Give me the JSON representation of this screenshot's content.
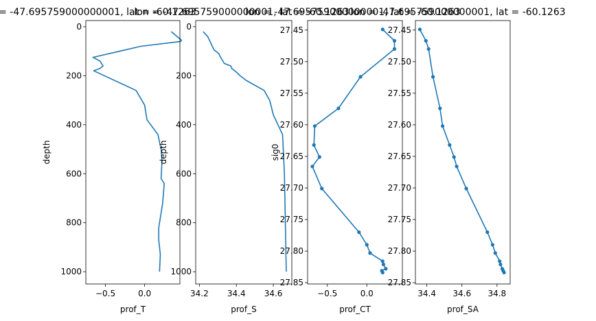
{
  "figure": {
    "line_color": "#1f77b4",
    "background": "#ffffff"
  },
  "chart_data": [
    {
      "type": "line",
      "title": "lon = -47.695759000000001, lat = -60.1263",
      "xlabel": "prof_T",
      "ylabel": "depth",
      "xlim": [
        -0.75,
        0.45
      ],
      "ylim": [
        1050,
        -25
      ],
      "y_inverted": true,
      "markers": false,
      "xticks": [
        -0.5,
        0.0
      ],
      "xtick_labels": [
        "−0.5",
        "0.0"
      ],
      "yticks": [
        0,
        200,
        400,
        600,
        800,
        1000
      ],
      "ytick_labels": [
        "0",
        "200",
        "400",
        "600",
        "800",
        "1000"
      ],
      "x": [
        0.34,
        0.47,
        0.46,
        -0.05,
        -0.32,
        -0.66,
        -0.57,
        -0.53,
        -0.57,
        -0.65,
        -0.11,
        0.0,
        0.03,
        0.17,
        0.21,
        0.22,
        0.22,
        0.21,
        0.25,
        0.23,
        0.18,
        0.18,
        0.2,
        0.19
      ],
      "y": [
        20,
        55,
        60,
        80,
        100,
        125,
        140,
        160,
        170,
        180,
        260,
        320,
        380,
        440,
        500,
        540,
        560,
        620,
        640,
        720,
        820,
        870,
        930,
        1000
      ]
    },
    {
      "type": "line",
      "title": "lon = -47.695759000000001, lat = -60.1263",
      "xlabel": "prof_S",
      "ylabel": "depth",
      "xlim": [
        34.18,
        34.7
      ],
      "ylim": [
        1050,
        -25
      ],
      "y_inverted": true,
      "markers": false,
      "xticks": [
        34.2,
        34.4,
        34.6
      ],
      "xtick_labels": [
        "34.2",
        "34.4",
        "34.6"
      ],
      "yticks": [
        0,
        200,
        400,
        600,
        800,
        1000
      ],
      "ytick_labels": [
        "0",
        "200",
        "400",
        "600",
        "800",
        "1000"
      ],
      "x": [
        34.22,
        34.245,
        34.27,
        34.28,
        34.305,
        34.315,
        34.335,
        34.37,
        34.375,
        34.4,
        34.42,
        34.455,
        34.55,
        34.58,
        34.6,
        34.625,
        34.65,
        34.655,
        34.66,
        34.665,
        34.67
      ],
      "y": [
        20,
        40,
        80,
        95,
        110,
        125,
        150,
        160,
        170,
        185,
        200,
        220,
        260,
        300,
        360,
        400,
        440,
        520,
        600,
        800,
        1000
      ]
    },
    {
      "type": "line",
      "title": "lon = -47.695759000000001, lat = -60.1263",
      "xlabel": "prof_CT",
      "ylabel": "sig0",
      "xlim": [
        -0.75,
        0.45
      ],
      "ylim": [
        27.852,
        27.435
      ],
      "y_inverted": true,
      "markers": true,
      "xticks": [
        -0.5,
        0.0
      ],
      "xtick_labels": [
        "−0.5",
        "0.0"
      ],
      "yticks": [
        27.45,
        27.5,
        27.55,
        27.6,
        27.65,
        27.7,
        27.75,
        27.8,
        27.85
      ],
      "ytick_labels": [
        "27.45",
        "27.50",
        "27.55",
        "27.60",
        "27.65",
        "27.70",
        "27.75",
        "27.80",
        "27.85"
      ],
      "x": [
        0.2,
        0.35,
        0.35,
        -0.08,
        -0.36,
        -0.66,
        -0.67,
        -0.6,
        -0.69,
        -0.57,
        -0.1,
        0.0,
        0.04,
        0.2,
        0.21,
        0.24,
        0.19,
        0.2
      ],
      "y": [
        27.449,
        27.467,
        27.48,
        27.524,
        27.574,
        27.602,
        27.632,
        27.651,
        27.666,
        27.701,
        27.77,
        27.79,
        27.803,
        27.816,
        27.821,
        27.828,
        27.831,
        27.834
      ]
    },
    {
      "type": "line",
      "title": "lon = -47.695759000000001, lat = -60.1263",
      "xlabel": "prof_SA",
      "ylabel": "",
      "xlim": [
        34.335,
        34.875
      ],
      "ylim": [
        27.852,
        27.435
      ],
      "y_inverted": true,
      "markers": true,
      "xticks": [
        34.4,
        34.6,
        34.8
      ],
      "xtick_labels": [
        "34.4",
        "34.6",
        "34.8"
      ],
      "yticks": [
        27.45,
        27.5,
        27.55,
        27.6,
        27.65,
        27.7,
        27.75,
        27.8,
        27.85
      ],
      "ytick_labels": [
        "27.45",
        "27.50",
        "27.55",
        "27.60",
        "27.65",
        "27.70",
        "27.75",
        "27.80",
        "27.85"
      ],
      "x": [
        34.36,
        34.395,
        34.41,
        34.435,
        34.475,
        34.49,
        34.53,
        34.555,
        34.57,
        34.625,
        34.745,
        34.775,
        34.79,
        34.815,
        34.82,
        34.83,
        34.835,
        34.84
      ],
      "y": [
        27.449,
        27.467,
        27.48,
        27.524,
        27.574,
        27.602,
        27.632,
        27.651,
        27.666,
        27.701,
        27.77,
        27.79,
        27.803,
        27.816,
        27.821,
        27.828,
        27.831,
        27.834
      ]
    }
  ]
}
